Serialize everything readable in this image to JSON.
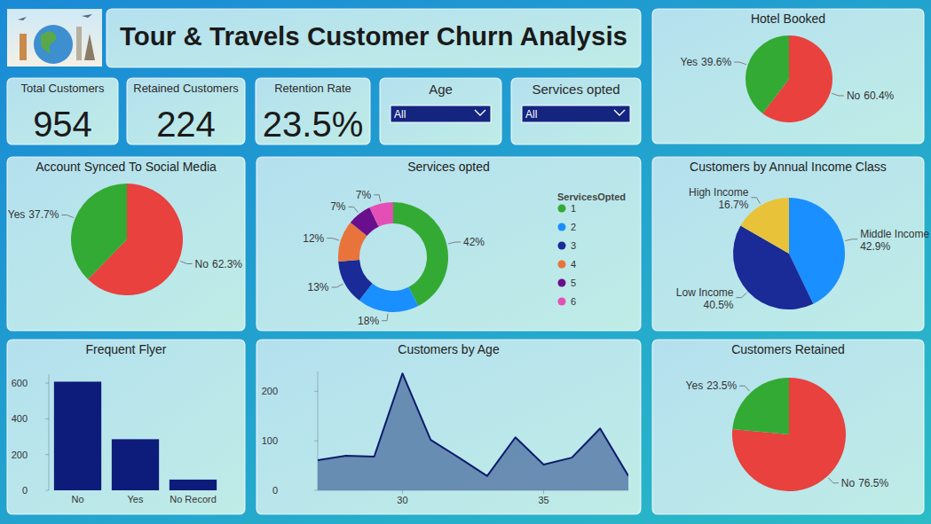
{
  "header": {
    "title": "Tour & Travels Customer Churn Analysis"
  },
  "kpis": [
    {
      "label": "Total Customers",
      "value": "954"
    },
    {
      "label": "Retained Customers",
      "value": "224"
    },
    {
      "label": "Retention Rate",
      "value": "23.5%"
    }
  ],
  "filters": [
    {
      "label": "Age",
      "value": "All"
    },
    {
      "label": "Services opted",
      "value": "All"
    }
  ],
  "chart_data": [
    {
      "type": "pie",
      "title": "Hotel Booked",
      "categories": [
        "No",
        "Yes"
      ],
      "values": [
        60.4,
        39.6
      ],
      "value_labels": [
        "60.4%",
        "39.6%"
      ],
      "colors": [
        "#e8413e",
        "#33aa33"
      ],
      "data_labels": true
    },
    {
      "type": "pie",
      "title": "Account Synced To Social Media",
      "categories": [
        "No",
        "Yes"
      ],
      "values": [
        62.3,
        37.7
      ],
      "value_labels": [
        "62.3%",
        "37.7%"
      ],
      "colors": [
        "#e8413e",
        "#33aa33"
      ],
      "data_labels": true
    },
    {
      "type": "donut",
      "title": "Services opted",
      "legend_title": "ServicesOpted",
      "categories": [
        "1",
        "2",
        "3",
        "4",
        "5",
        "6"
      ],
      "values": [
        42,
        18,
        13,
        12,
        7,
        7
      ],
      "value_labels": [
        "42%",
        "18%",
        "13%",
        "12%",
        "7%",
        "7%"
      ],
      "colors": [
        "#33aa33",
        "#1a8fff",
        "#1a2a96",
        "#e8743b",
        "#6a0f8c",
        "#e44fb5"
      ],
      "data_labels": true,
      "legend": "right"
    },
    {
      "type": "pie",
      "title": "Customers by Annual Income Class",
      "categories": [
        "Middle Income",
        "Low Income",
        "High Income"
      ],
      "values": [
        42.9,
        40.5,
        16.7
      ],
      "value_labels": [
        "42.9%",
        "40.5%",
        "16.7%"
      ],
      "colors": [
        "#1a8fff",
        "#1a2a96",
        "#e8c33a"
      ],
      "data_labels": true
    },
    {
      "type": "bar",
      "title": "Frequent Flyer",
      "categories": [
        "No",
        "Yes",
        "No Record"
      ],
      "values": [
        608,
        286,
        60
      ],
      "color": "#0d1b7a",
      "ylim": [
        0,
        650
      ],
      "yticks": [
        0,
        200,
        400,
        600
      ]
    },
    {
      "type": "area",
      "title": "Customers by Age",
      "x": [
        27,
        28,
        29,
        30,
        31,
        32,
        33,
        34,
        35,
        36,
        37,
        38
      ],
      "values": [
        61,
        70,
        68,
        236,
        102,
        66,
        29,
        107,
        52,
        66,
        125,
        29
      ],
      "color": "#0d1b6b",
      "xlim": [
        27,
        38
      ],
      "xticks": [
        30,
        35
      ],
      "ylim": [
        0,
        240
      ],
      "yticks": [
        0,
        100,
        200
      ]
    },
    {
      "type": "pie",
      "title": "Customers Retained",
      "categories": [
        "No",
        "Yes"
      ],
      "values": [
        76.5,
        23.5
      ],
      "value_labels": [
        "76.5%",
        "23.5%"
      ],
      "colors": [
        "#e8413e",
        "#33aa33"
      ],
      "data_labels": true
    }
  ]
}
